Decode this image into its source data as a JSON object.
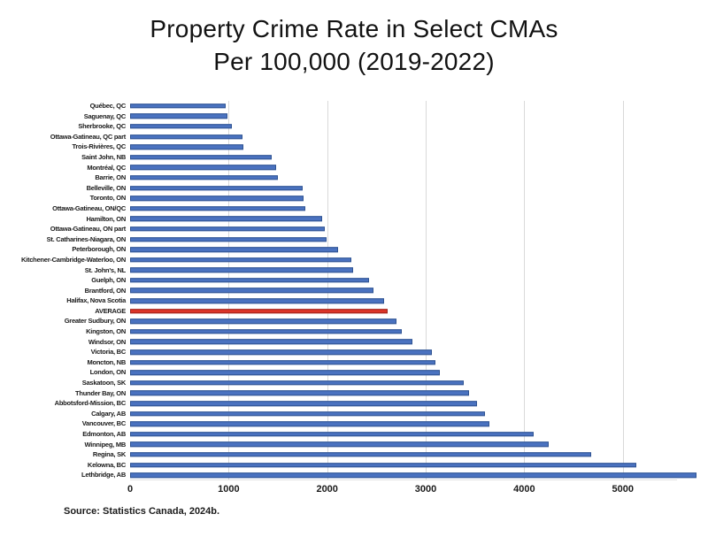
{
  "title": {
    "line1": "Property Crime Rate in Select CMAs",
    "line2": "Per 100,000 (2019-2022)"
  },
  "source": "Source: Statistics Canada, 2024b.",
  "colors": {
    "bar": "#4a72c0",
    "bar_border": "#2f5391",
    "average_bar": "#dd3428",
    "average_bar_border": "#9c241c",
    "gridline": "#d9d9d9"
  },
  "chart_data": {
    "type": "bar",
    "orientation": "horizontal",
    "title": "Property Crime Rate in Select CMAs Per 100,000 (2019-2022)",
    "xlabel": "",
    "ylabel": "",
    "grid": "vertical",
    "x_ticks": [
      0,
      1000,
      2000,
      3000,
      4000,
      5000
    ],
    "xlim": [
      0,
      5550
    ],
    "highlight_category": "AVERAGE",
    "categories": [
      "Québec, QC",
      "Saguenay, QC",
      "Sherbrooke, QC",
      "Ottawa-Gatineau, QC part",
      "Trois-Rivières, QC",
      "Saint John, NB",
      "Montréal, QC",
      "Barrie, ON",
      "Belleville, ON",
      "Toronto, ON",
      "Ottawa-Gatineau, ON/QC",
      "Hamilton, ON",
      "Ottawa-Gatineau, ON part",
      "St. Catharines-Niagara, ON",
      "Peterborough, ON",
      "Kitchener-Cambridge-Waterloo, ON",
      "St. John's, NL",
      "Guelph, ON",
      "Brantford, ON",
      "Halifax, Nova Scotia",
      "AVERAGE",
      "Greater Sudbury, ON",
      "Kingston, ON",
      "Windsor, ON",
      "Victoria, BC",
      "Moncton, NB",
      "London, ON",
      "Saskatoon, SK",
      "Thunder Bay, ON",
      "Abbotsford-Mission, BC",
      "Calgary, AB",
      "Vancouver, BC",
      "Edmonton, AB",
      "Winnipeg, MB",
      "Regina, SK",
      "Kelowna, BC",
      "Lethbridge, AB"
    ],
    "values": [
      930,
      950,
      990,
      1100,
      1105,
      1380,
      1420,
      1440,
      1685,
      1695,
      1705,
      1875,
      1900,
      1915,
      2025,
      2160,
      2175,
      2330,
      2370,
      2480,
      2510,
      2600,
      2650,
      2750,
      2945,
      2975,
      3020,
      3250,
      3305,
      3380,
      3460,
      3505,
      3940,
      4085,
      4500,
      4940,
      5525
    ]
  }
}
